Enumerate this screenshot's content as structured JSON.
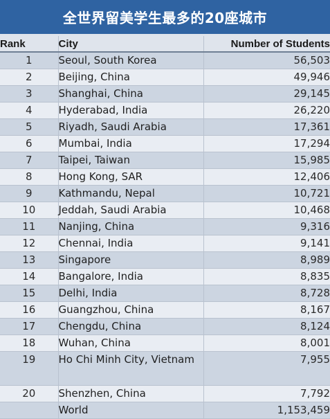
{
  "title": "全世界留美学生最多的20座城市",
  "headers": {
    "rank": "Rank",
    "city": "City",
    "students": "Number of Students"
  },
  "rows": [
    {
      "rank": "1",
      "city": "Seoul, South Korea",
      "students": "56,503"
    },
    {
      "rank": "2",
      "city": "Beijing, China",
      "students": "49,946"
    },
    {
      "rank": "3",
      "city": "Shanghai, China",
      "students": "29,145"
    },
    {
      "rank": "4",
      "city": "Hyderabad, India",
      "students": "26,220"
    },
    {
      "rank": "5",
      "city": "Riyadh, Saudi Arabia",
      "students": "17,361"
    },
    {
      "rank": "6",
      "city": "Mumbai, India",
      "students": "17,294"
    },
    {
      "rank": "7",
      "city": "Taipei, Taiwan",
      "students": "15,985"
    },
    {
      "rank": "8",
      "city": "Hong Kong, SAR",
      "students": "12,406"
    },
    {
      "rank": "9",
      "city": "Kathmandu, Nepal",
      "students": "10,721"
    },
    {
      "rank": "10",
      "city": "Jeddah, Saudi Arabia",
      "students": "10,468"
    },
    {
      "rank": "11",
      "city": "Nanjing, China",
      "students": "9,316"
    },
    {
      "rank": "12",
      "city": "Chennai, India",
      "students": "9,141"
    },
    {
      "rank": "13",
      "city": "Singapore",
      "students": "8,989"
    },
    {
      "rank": "14",
      "city": "Bangalore, India",
      "students": "8,835"
    },
    {
      "rank": "15",
      "city": "Delhi, India",
      "students": "8,728"
    },
    {
      "rank": "16",
      "city": "Guangzhou, China",
      "students": "8,167"
    },
    {
      "rank": "17",
      "city": "Chengdu, China",
      "students": "8,124"
    },
    {
      "rank": "18",
      "city": "Wuhan, China",
      "students": "8,001"
    },
    {
      "rank": "19",
      "city": "Ho Chi Minh City, Vietnam",
      "students": "7,955"
    },
    {
      "rank": "20",
      "city": "Shenzhen, China",
      "students": "7,792"
    },
    {
      "rank": "",
      "city": "World",
      "students": "1,153,459"
    }
  ]
}
